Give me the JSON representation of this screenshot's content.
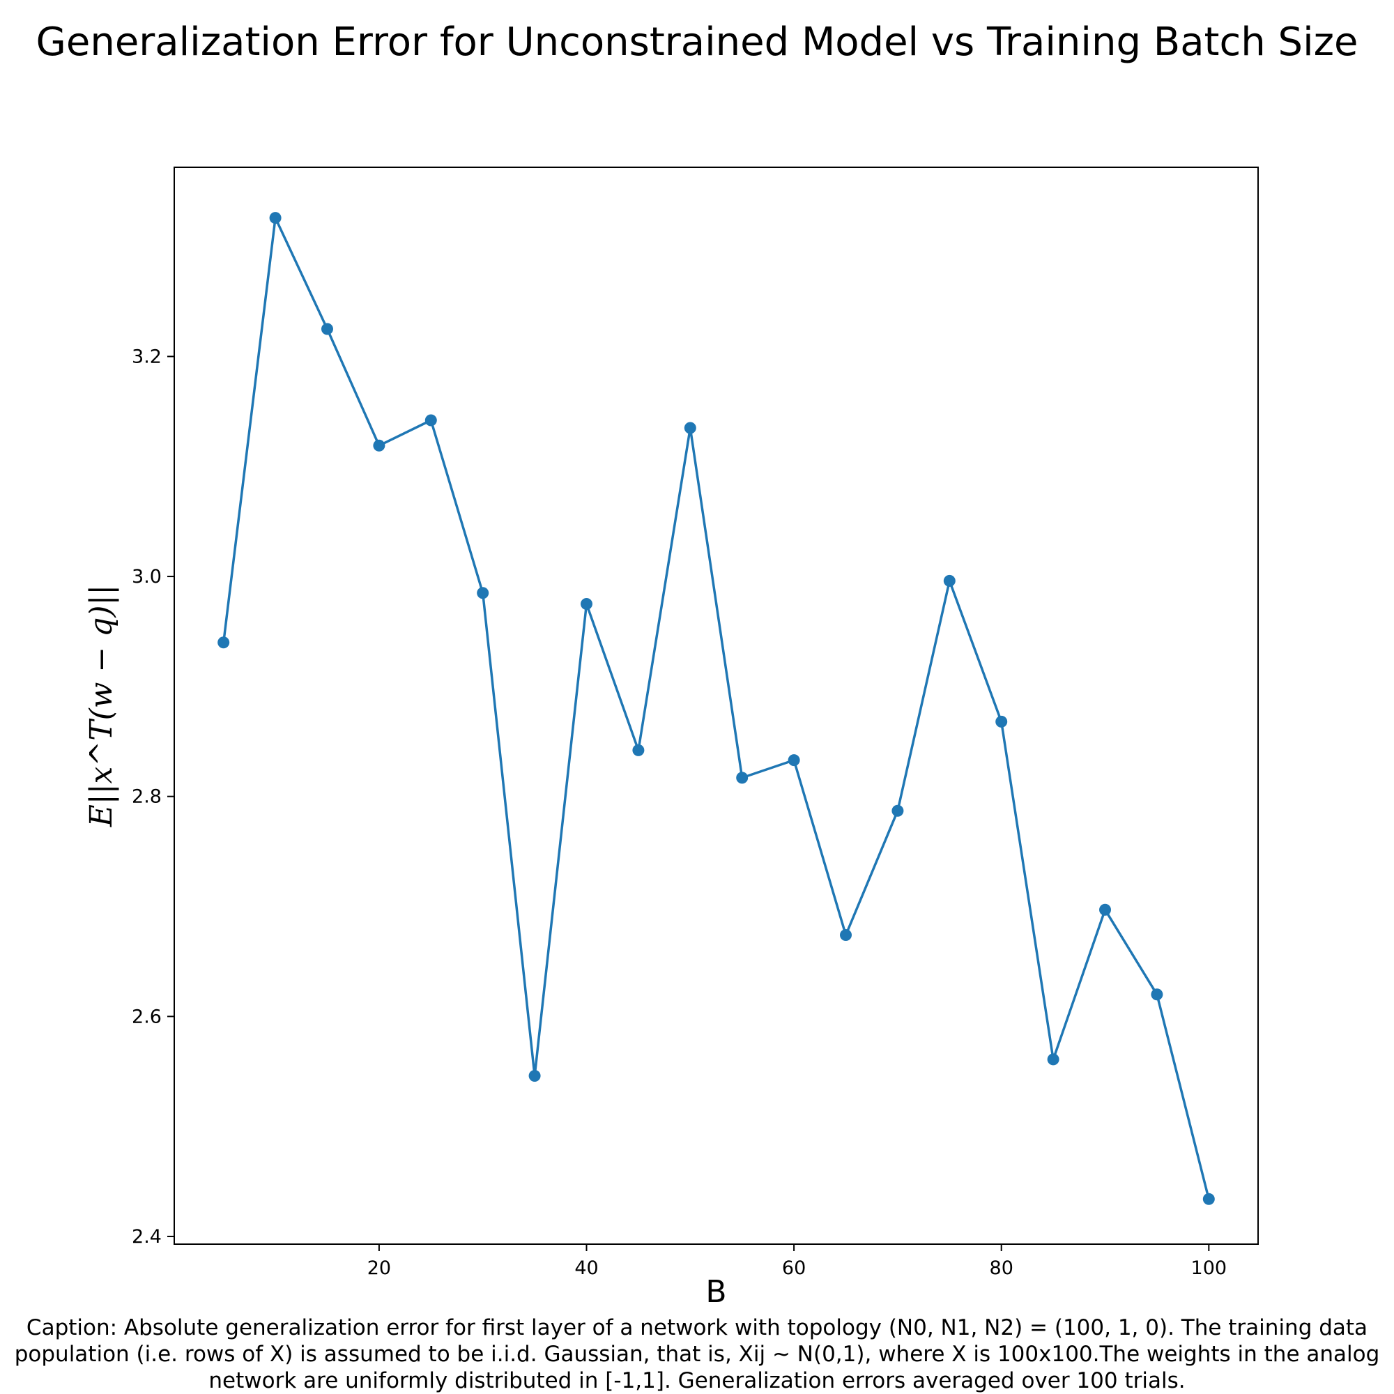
{
  "chart_data": {
    "type": "line",
    "title": "Generalization Error for Unconstrained Model vs Training Batch Size",
    "xlabel": "B",
    "ylabel": "E||x^T(w − q)||",
    "x": [
      5,
      10,
      15,
      20,
      25,
      30,
      35,
      40,
      45,
      50,
      55,
      60,
      65,
      70,
      75,
      80,
      85,
      90,
      95,
      100
    ],
    "series": [
      {
        "values": [
          2.94,
          3.326,
          3.225,
          3.119,
          3.142,
          2.985,
          2.546,
          2.975,
          2.842,
          3.135,
          2.817,
          2.833,
          2.674,
          2.787,
          2.996,
          2.868,
          2.561,
          2.697,
          2.62,
          2.434
        ],
        "color": "#1f77b4",
        "marker": "circle"
      }
    ],
    "xlim": [
      0.25,
      104.75
    ],
    "ylim": [
      2.393,
      3.372
    ],
    "xticks": [
      "20",
      "40",
      "60",
      "80",
      "100"
    ],
    "yticks": [
      "2.4",
      "2.6",
      "2.8",
      "3.0",
      "3.2"
    ],
    "grid": false,
    "legend": "none"
  },
  "caption": "Caption: Absolute generalization error for first layer of a network with topology (N0, N1, N2) = (100, 1, 0). The training data population (i.e. rows of X) is assumed to be i.i.d. Gaussian, that is, Xij ~ N(0,1), where X is 100x100.The weights in the analog network are uniformly distributed in [-1,1]. Generalization errors averaged over 100 trials."
}
